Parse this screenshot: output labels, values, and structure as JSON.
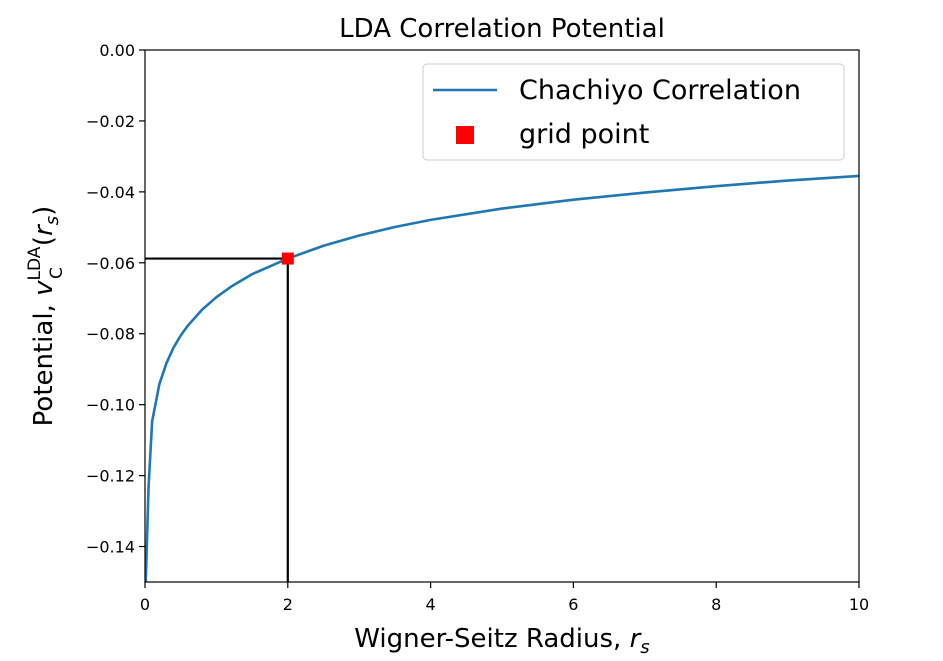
{
  "chart_data": {
    "type": "line",
    "title": "LDA Correlation Potential",
    "xlabel": "Wigner-Seitz Radius, r_s",
    "xlabel_main": "Wigner-Seitz Radius, ",
    "xlabel_var": "r",
    "xlabel_sub": "s",
    "ylabel": "Potential, v_C^LDA(r_s)",
    "ylabel_main": "Potential, ",
    "ylabel_v": "v",
    "ylabel_sup": "LDA",
    "ylabel_sub": "C",
    "ylabel_paren_open": "(",
    "ylabel_r": "r",
    "ylabel_rsub": "s",
    "ylabel_paren_close": ")",
    "xlim": [
      0,
      10
    ],
    "ylim": [
      -0.15,
      0.0
    ],
    "xticks": [
      0,
      2,
      4,
      6,
      8,
      10
    ],
    "xtick_labels": [
      "0",
      "2",
      "4",
      "6",
      "8",
      "10"
    ],
    "yticks": [
      0.0,
      -0.02,
      -0.04,
      -0.06,
      -0.08,
      -0.1,
      -0.12,
      -0.14
    ],
    "ytick_labels": [
      "0.00",
      "−0.02",
      "−0.04",
      "−0.06",
      "−0.08",
      "−0.10",
      "−0.12",
      "−0.14"
    ],
    "grid": false,
    "legend_position": "top-right",
    "series": [
      {
        "name": "Chachiyo Correlation",
        "kind": "line",
        "color": "#1f77b4",
        "x": [
          0.01,
          0.05,
          0.1,
          0.2,
          0.3,
          0.4,
          0.5,
          0.6,
          0.8,
          1.0,
          1.2,
          1.5,
          2.0,
          2.5,
          3.0,
          3.5,
          4.0,
          5.0,
          6.0,
          7.0,
          8.0,
          9.0,
          10.0
        ],
        "y": [
          -0.1503,
          -0.1231,
          -0.1047,
          -0.0943,
          -0.0883,
          -0.0839,
          -0.0805,
          -0.0777,
          -0.0732,
          -0.0697,
          -0.0668,
          -0.0632,
          -0.0588,
          -0.0552,
          -0.0523,
          -0.0499,
          -0.0479,
          -0.0447,
          -0.0422,
          -0.0402,
          -0.0384,
          -0.0368,
          -0.0355
        ]
      },
      {
        "name": "grid point",
        "kind": "marker",
        "color": "#ff0000",
        "x": [
          2.0
        ],
        "y": [
          -0.0588
        ]
      }
    ],
    "guide_lines_color": "#000000"
  }
}
